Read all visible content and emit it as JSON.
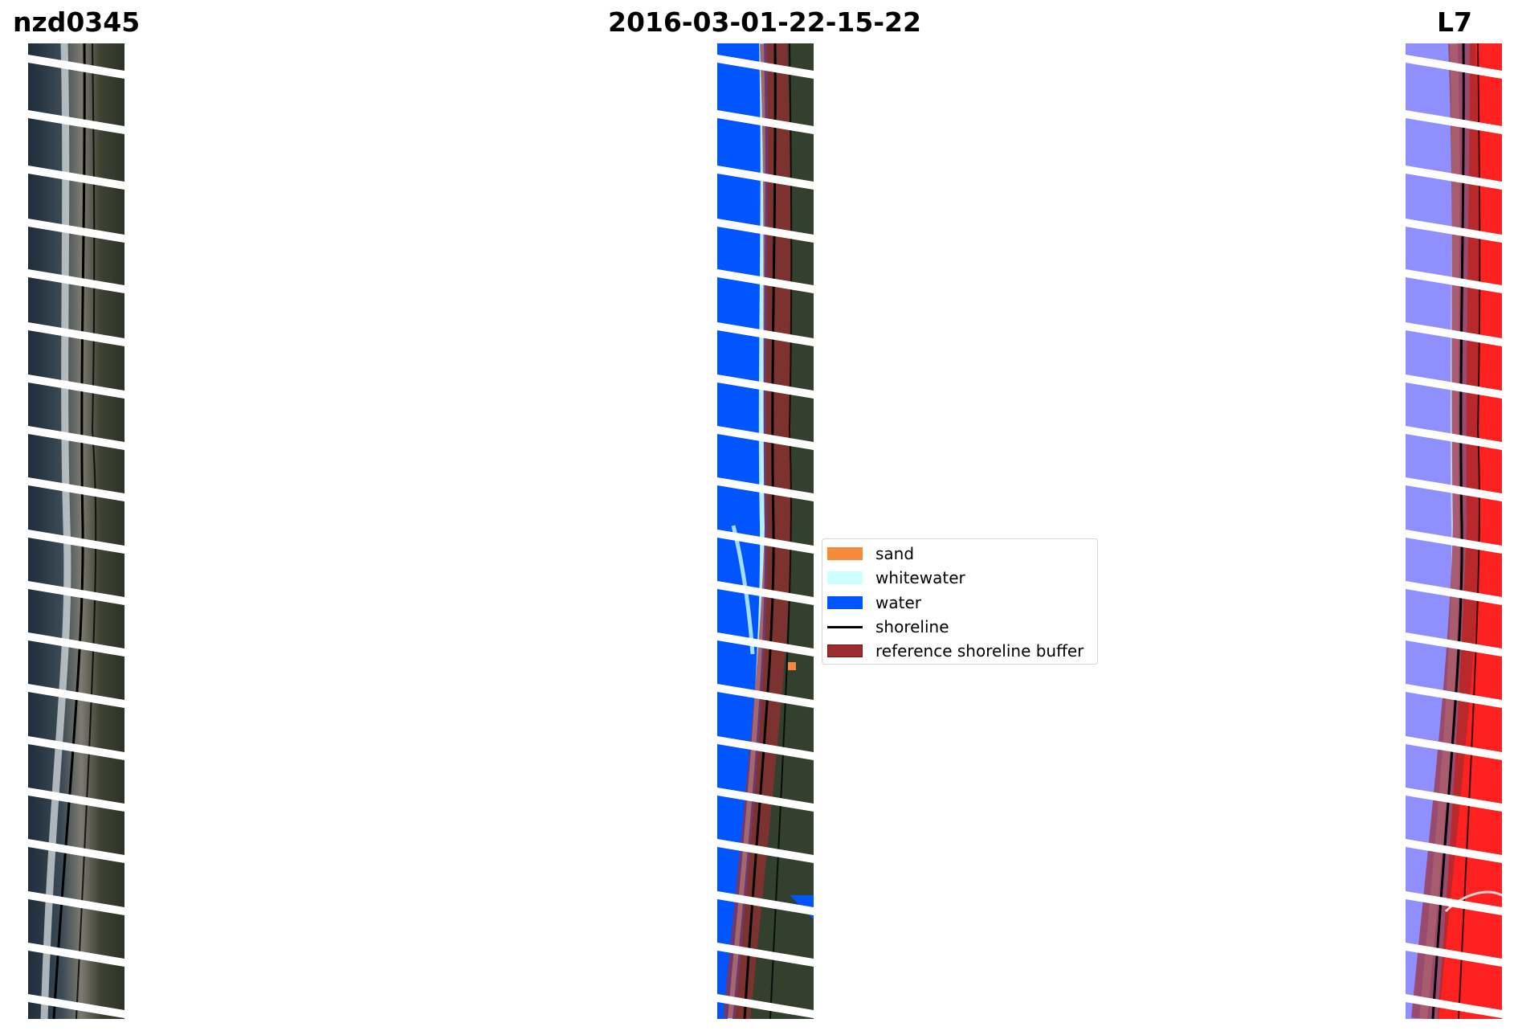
{
  "titles": {
    "left": "nzd0345",
    "center": "2016-03-01-22-15-22",
    "right": "L7"
  },
  "legend": {
    "items": [
      {
        "label": "sand",
        "color": "#f58a3a",
        "kind": "patch"
      },
      {
        "label": "whitewater",
        "color": "#ccffff",
        "kind": "patch"
      },
      {
        "label": "water",
        "color": "#0055ff",
        "kind": "patch"
      },
      {
        "label": "shoreline",
        "color": "#000000",
        "kind": "line"
      },
      {
        "label": "reference shoreline buffer",
        "color": "#9b2d30",
        "kind": "patch"
      }
    ]
  },
  "colors": {
    "rgb_land": "#3a4030",
    "rgb_sea": "#1f2c3a",
    "classified_water": "#0055ff",
    "buffer": "#9b2d30",
    "index_water": "#8f8fff",
    "index_land": "#ff2020"
  }
}
